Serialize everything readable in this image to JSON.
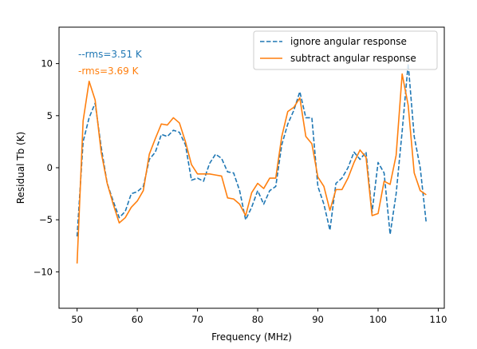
{
  "chart_data": {
    "type": "line",
    "title": "",
    "xlabel": "Frequency (MHz)",
    "ylabel": "Residual Tb (K)",
    "xlim": [
      47.0,
      111.0
    ],
    "ylim": [
      -13.5,
      13.5
    ],
    "xticks": [
      50,
      60,
      70,
      80,
      90,
      100,
      110
    ],
    "yticks": [
      -10,
      -5,
      0,
      5,
      10
    ],
    "grid": false,
    "legend_position": "top-right",
    "annotations": [
      {
        "text": "--rms=3.51 K",
        "color": "#1f77b4"
      },
      {
        "text": "-rms=3.69 K",
        "color": "#ff7f0e"
      }
    ],
    "series": [
      {
        "name": "ignore angular response",
        "color": "#1f77b4",
        "linestyle": "dashed",
        "x": [
          50,
          51,
          52,
          53,
          54,
          55,
          56,
          57,
          58,
          59,
          60,
          61,
          62,
          63,
          64,
          65,
          66,
          67,
          68,
          69,
          70,
          71,
          72,
          73,
          74,
          75,
          76,
          77,
          78,
          79,
          80,
          81,
          82,
          83,
          84,
          85,
          86,
          87,
          88,
          89,
          90,
          91,
          92,
          93,
          94,
          95,
          96,
          97,
          98,
          99,
          100,
          101,
          102,
          103,
          104,
          105,
          106,
          107,
          108
        ],
        "y": [
          -6.6,
          2.5,
          4.8,
          6.2,
          2.0,
          -1.5,
          -3.2,
          -4.8,
          -4.2,
          -2.5,
          -2.3,
          -1.8,
          0.8,
          1.5,
          3.2,
          3.0,
          3.6,
          3.4,
          2.2,
          -1.2,
          -1.0,
          -1.3,
          0.4,
          1.3,
          0.9,
          -0.4,
          -0.5,
          -2.2,
          -5.0,
          -3.8,
          -2.2,
          -3.5,
          -2.2,
          -1.8,
          2.2,
          4.2,
          5.5,
          7.3,
          4.8,
          4.8,
          -1.8,
          -3.5,
          -6.0,
          -1.5,
          -1.0,
          0.0,
          1.5,
          0.8,
          1.5,
          -4.3,
          0.5,
          -0.5,
          -6.4,
          -2.5,
          3.5,
          10.0,
          3.0,
          0.0,
          -5.3
        ]
      },
      {
        "name": "subtract angular response",
        "color": "#ff7f0e",
        "linestyle": "solid",
        "x": [
          50,
          51,
          52,
          53,
          54,
          55,
          56,
          57,
          58,
          59,
          60,
          61,
          62,
          63,
          64,
          65,
          66,
          67,
          68,
          69,
          70,
          71,
          72,
          73,
          74,
          75,
          76,
          77,
          78,
          79,
          80,
          81,
          82,
          83,
          84,
          85,
          86,
          87,
          88,
          89,
          90,
          91,
          92,
          93,
          94,
          95,
          96,
          97,
          98,
          99,
          100,
          101,
          102,
          103,
          104,
          105,
          106,
          107,
          108
        ],
        "y": [
          -9.2,
          4.5,
          8.3,
          6.5,
          1.5,
          -1.5,
          -3.5,
          -5.3,
          -4.8,
          -3.8,
          -3.2,
          -2.2,
          1.3,
          2.8,
          4.2,
          4.1,
          4.8,
          4.3,
          2.5,
          0.3,
          -0.6,
          -0.6,
          -0.6,
          -0.7,
          -0.8,
          -2.9,
          -3.0,
          -3.5,
          -4.6,
          -2.4,
          -1.5,
          -2.0,
          -1.0,
          -1.0,
          3.0,
          5.4,
          5.8,
          6.7,
          3.0,
          2.3,
          -0.9,
          -1.8,
          -4.1,
          -2.1,
          -2.1,
          -1.0,
          0.5,
          1.7,
          1.0,
          -4.6,
          -4.4,
          -1.3,
          -1.6,
          1.2,
          9.0,
          6.0,
          -0.5,
          -2.2,
          -2.6
        ]
      }
    ]
  }
}
